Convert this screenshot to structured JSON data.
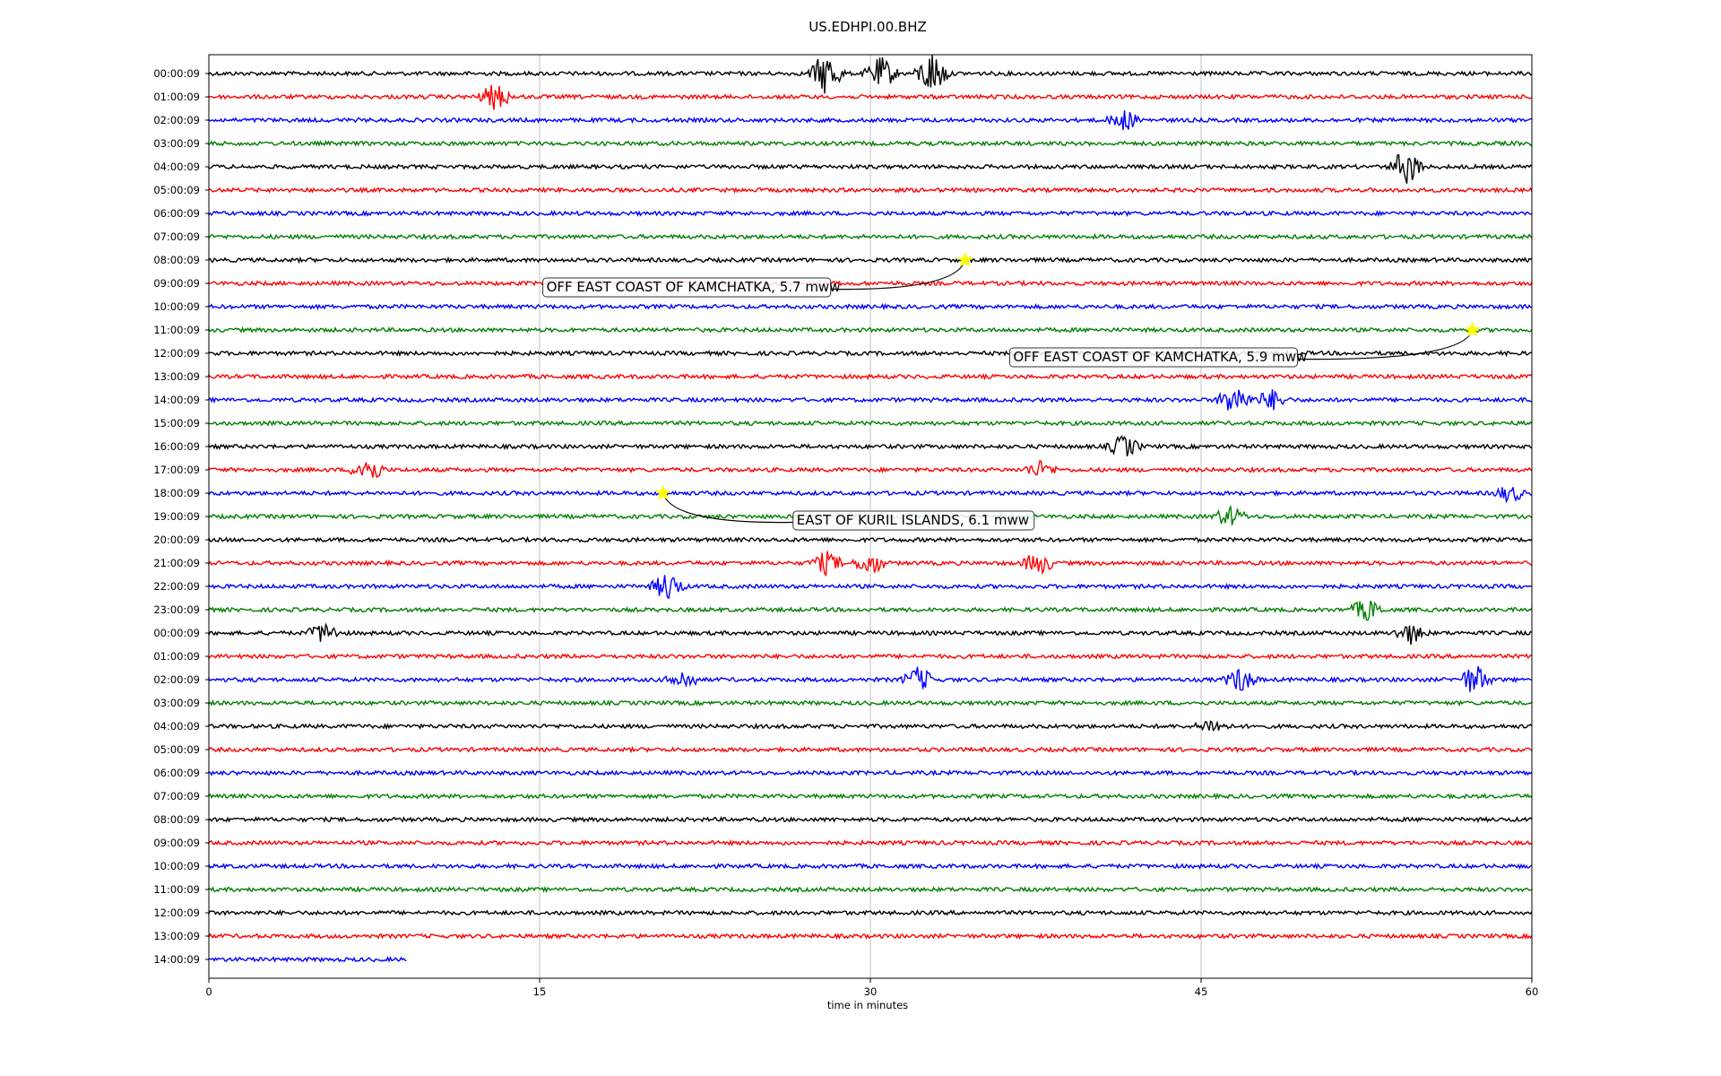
{
  "chart_data": {
    "type": "line",
    "title": "US.EDHPI.00.BHZ",
    "xlabel": "time in minutes",
    "ylabel": "",
    "xlim": [
      0,
      60
    ],
    "x_ticks": [
      "0",
      "15",
      "30",
      "45",
      "60"
    ],
    "x_tick_values": [
      0,
      15,
      30,
      45,
      60
    ],
    "grid": "vertical",
    "colors": [
      "#000000",
      "#ff0000",
      "#0000ff",
      "#008000"
    ],
    "marker_color": "#ffff00",
    "row_labels": [
      "00:00:09",
      "01:00:09",
      "02:00:09",
      "03:00:09",
      "04:00:09",
      "05:00:09",
      "06:00:09",
      "07:00:09",
      "08:00:09",
      "09:00:09",
      "10:00:09",
      "11:00:09",
      "12:00:09",
      "13:00:09",
      "14:00:09",
      "15:00:09",
      "16:00:09",
      "17:00:09",
      "18:00:09",
      "19:00:09",
      "20:00:09",
      "21:00:09",
      "22:00:09",
      "23:00:09",
      "00:00:09",
      "01:00:09",
      "02:00:09",
      "03:00:09",
      "04:00:09",
      "05:00:09",
      "06:00:09",
      "07:00:09",
      "08:00:09",
      "09:00:09",
      "10:00:09",
      "11:00:09",
      "12:00:09",
      "13:00:09",
      "14:00:09"
    ],
    "last_row_end_minute": 9,
    "events": [
      {
        "label": "OFF EAST COAST OF KAMCHATKA, 5.7 mww",
        "row": 8,
        "minute": 34.3
      },
      {
        "label": "OFF EAST COAST OF KAMCHATKA, 5.9 mww",
        "row": 11,
        "minute": 57.3
      },
      {
        "label": "EAST OF KURIL ISLANDS, 6.1 mww",
        "row": 18,
        "minute": 20.6
      }
    ],
    "bursts": [
      {
        "row": 0,
        "minute": 28,
        "amplitude": 2.2
      },
      {
        "row": 0,
        "minute": 30.5,
        "amplitude": 1.6
      },
      {
        "row": 0,
        "minute": 32.8,
        "amplitude": 2.2
      },
      {
        "row": 1,
        "minute": 13,
        "amplitude": 1.3
      },
      {
        "row": 2,
        "minute": 41.5,
        "amplitude": 1.0
      },
      {
        "row": 4,
        "minute": 54.3,
        "amplitude": 1.8
      },
      {
        "row": 14,
        "minute": 46.5,
        "amplitude": 1.6
      },
      {
        "row": 14,
        "minute": 48.2,
        "amplitude": 1.0
      },
      {
        "row": 16,
        "minute": 41.5,
        "amplitude": 1.1
      },
      {
        "row": 17,
        "minute": 7.2,
        "amplitude": 1.4
      },
      {
        "row": 17,
        "minute": 37.7,
        "amplitude": 0.8
      },
      {
        "row": 18,
        "minute": 59,
        "amplitude": 0.8
      },
      {
        "row": 19,
        "minute": 46.3,
        "amplitude": 1.0
      },
      {
        "row": 21,
        "minute": 28,
        "amplitude": 1.1
      },
      {
        "row": 21,
        "minute": 30,
        "amplitude": 1.1
      },
      {
        "row": 21,
        "minute": 37.6,
        "amplitude": 1.1
      },
      {
        "row": 22,
        "minute": 20.8,
        "amplitude": 1.4
      },
      {
        "row": 23,
        "minute": 52.5,
        "amplitude": 1.1
      },
      {
        "row": 24,
        "minute": 5.2,
        "amplitude": 1.0
      },
      {
        "row": 24,
        "minute": 54.5,
        "amplitude": 1.0
      },
      {
        "row": 26,
        "minute": 21.5,
        "amplitude": 0.9
      },
      {
        "row": 26,
        "minute": 32.2,
        "amplitude": 1.2
      },
      {
        "row": 26,
        "minute": 46.8,
        "amplitude": 1.2
      },
      {
        "row": 26,
        "minute": 57.4,
        "amplitude": 1.5
      },
      {
        "row": 28,
        "minute": 45.5,
        "amplitude": 0.7
      }
    ]
  }
}
